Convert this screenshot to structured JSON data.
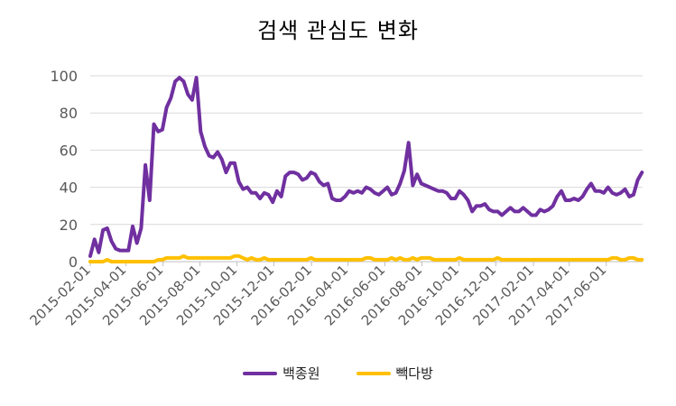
{
  "chart_data": {
    "type": "line",
    "title": "검색 관심도 변화",
    "xlabel": "",
    "ylabel": "",
    "ylim": [
      0,
      100
    ],
    "yticks": [
      0,
      20,
      40,
      60,
      80,
      100
    ],
    "xlim": [
      "2015-02-01",
      "2017-07-31"
    ],
    "xticks": [
      "2015-02-01",
      "2015-04-01",
      "2015-06-01",
      "2015-08-01",
      "2015-10-01",
      "2015-12-01",
      "2016-02-01",
      "2016-04-01",
      "2016-06-01",
      "2016-08-01",
      "2016-10-01",
      "2016-12-01",
      "2017-02-01",
      "2017-04-01",
      "2017-06-01"
    ],
    "grid": "horizontal",
    "legend_position": "bottom",
    "colors": {
      "series_1": "#7030a0",
      "series_2": "#ffc000"
    },
    "series": [
      {
        "name": "백종원",
        "x": [
          "2015-02-01",
          "2015-02-08",
          "2015-02-15",
          "2015-02-22",
          "2015-03-01",
          "2015-03-08",
          "2015-03-15",
          "2015-03-22",
          "2015-03-29",
          "2015-04-05",
          "2015-04-12",
          "2015-04-19",
          "2015-04-26",
          "2015-05-03",
          "2015-05-10",
          "2015-05-17",
          "2015-05-24",
          "2015-05-31",
          "2015-06-07",
          "2015-06-14",
          "2015-06-21",
          "2015-06-28",
          "2015-07-05",
          "2015-07-12",
          "2015-07-19",
          "2015-07-26",
          "2015-08-02",
          "2015-08-09",
          "2015-08-16",
          "2015-08-23",
          "2015-08-30",
          "2015-09-06",
          "2015-09-13",
          "2015-09-20",
          "2015-09-27",
          "2015-10-04",
          "2015-10-11",
          "2015-10-18",
          "2015-10-25",
          "2015-11-01",
          "2015-11-08",
          "2015-11-15",
          "2015-11-22",
          "2015-11-29",
          "2015-12-06",
          "2015-12-13",
          "2015-12-20",
          "2015-12-27",
          "2016-01-03",
          "2016-01-10",
          "2016-01-17",
          "2016-01-24",
          "2016-01-31",
          "2016-02-07",
          "2016-02-14",
          "2016-02-21",
          "2016-02-28",
          "2016-03-06",
          "2016-03-13",
          "2016-03-20",
          "2016-03-27",
          "2016-04-03",
          "2016-04-10",
          "2016-04-17",
          "2016-04-24",
          "2016-05-01",
          "2016-05-08",
          "2016-05-15",
          "2016-05-22",
          "2016-05-29",
          "2016-06-05",
          "2016-06-12",
          "2016-06-19",
          "2016-06-26",
          "2016-07-03",
          "2016-07-10",
          "2016-07-17",
          "2016-07-24",
          "2016-07-31",
          "2016-08-07",
          "2016-08-14",
          "2016-08-21",
          "2016-08-28",
          "2016-09-04",
          "2016-09-11",
          "2016-09-18",
          "2016-09-25",
          "2016-10-02",
          "2016-10-09",
          "2016-10-16",
          "2016-10-23",
          "2016-10-30",
          "2016-11-06",
          "2016-11-13",
          "2016-11-20",
          "2016-11-27",
          "2016-12-04",
          "2016-12-11",
          "2016-12-18",
          "2016-12-25",
          "2017-01-01",
          "2017-01-08",
          "2017-01-15",
          "2017-01-22",
          "2017-01-29",
          "2017-02-05",
          "2017-02-12",
          "2017-02-19",
          "2017-02-26",
          "2017-03-05",
          "2017-03-12",
          "2017-03-19",
          "2017-03-26",
          "2017-04-02",
          "2017-04-09",
          "2017-04-16",
          "2017-04-23",
          "2017-04-30",
          "2017-05-07",
          "2017-05-14",
          "2017-05-21",
          "2017-05-28",
          "2017-06-04",
          "2017-06-11",
          "2017-06-18",
          "2017-06-25",
          "2017-07-02",
          "2017-07-09",
          "2017-07-16",
          "2017-07-23",
          "2017-07-30"
        ],
        "values": [
          3,
          12,
          5,
          17,
          18,
          11,
          7,
          6,
          6,
          6,
          19,
          10,
          18,
          52,
          33,
          74,
          70,
          71,
          83,
          88,
          97,
          99,
          97,
          90,
          87,
          99,
          70,
          62,
          57,
          56,
          59,
          55,
          48,
          53,
          53,
          43,
          39,
          40,
          37,
          37,
          34,
          37,
          36,
          32,
          38,
          35,
          46,
          48,
          48,
          47,
          44,
          45,
          48,
          47,
          43,
          41,
          42,
          34,
          33,
          33,
          35,
          38,
          37,
          38,
          37,
          40,
          39,
          37,
          36,
          38,
          40,
          36,
          37,
          42,
          49,
          64,
          41,
          47,
          42,
          41,
          40,
          39,
          38,
          38,
          37,
          34,
          34,
          38,
          36,
          33,
          27,
          30,
          30,
          31,
          28,
          27,
          27,
          25,
          27,
          29,
          27,
          27,
          29,
          27,
          25,
          25,
          28,
          27,
          28,
          30,
          35,
          38,
          33,
          33,
          34,
          33,
          35,
          39,
          42,
          38,
          38,
          37,
          40,
          37,
          36,
          37,
          39,
          35,
          36,
          44,
          48
        ]
      },
      {
        "name": "빽다방",
        "x": [
          "2015-02-01",
          "2015-02-08",
          "2015-02-15",
          "2015-02-22",
          "2015-03-01",
          "2015-03-08",
          "2015-03-15",
          "2015-03-22",
          "2015-03-29",
          "2015-04-05",
          "2015-04-12",
          "2015-04-19",
          "2015-04-26",
          "2015-05-03",
          "2015-05-10",
          "2015-05-17",
          "2015-05-24",
          "2015-05-31",
          "2015-06-07",
          "2015-06-14",
          "2015-06-21",
          "2015-06-28",
          "2015-07-05",
          "2015-07-12",
          "2015-07-19",
          "2015-07-26",
          "2015-08-02",
          "2015-08-09",
          "2015-08-16",
          "2015-08-23",
          "2015-08-30",
          "2015-09-06",
          "2015-09-13",
          "2015-09-20",
          "2015-09-27",
          "2015-10-04",
          "2015-10-11",
          "2015-10-18",
          "2015-10-25",
          "2015-11-01",
          "2015-11-08",
          "2015-11-15",
          "2015-11-22",
          "2015-11-29",
          "2015-12-06",
          "2015-12-13",
          "2015-12-20",
          "2015-12-27",
          "2016-01-03",
          "2016-01-10",
          "2016-01-17",
          "2016-01-24",
          "2016-01-31",
          "2016-02-07",
          "2016-02-14",
          "2016-02-21",
          "2016-02-28",
          "2016-03-06",
          "2016-03-13",
          "2016-03-20",
          "2016-03-27",
          "2016-04-03",
          "2016-04-10",
          "2016-04-17",
          "2016-04-24",
          "2016-05-01",
          "2016-05-08",
          "2016-05-15",
          "2016-05-22",
          "2016-05-29",
          "2016-06-05",
          "2016-06-12",
          "2016-06-19",
          "2016-06-26",
          "2016-07-03",
          "2016-07-10",
          "2016-07-17",
          "2016-07-24",
          "2016-07-31",
          "2016-08-07",
          "2016-08-14",
          "2016-08-21",
          "2016-08-28",
          "2016-09-04",
          "2016-09-11",
          "2016-09-18",
          "2016-09-25",
          "2016-10-02",
          "2016-10-09",
          "2016-10-16",
          "2016-10-23",
          "2016-10-30",
          "2016-11-06",
          "2016-11-13",
          "2016-11-20",
          "2016-11-27",
          "2016-12-04",
          "2016-12-11",
          "2016-12-18",
          "2016-12-25",
          "2017-01-01",
          "2017-01-08",
          "2017-01-15",
          "2017-01-22",
          "2017-01-29",
          "2017-02-05",
          "2017-02-12",
          "2017-02-19",
          "2017-02-26",
          "2017-03-05",
          "2017-03-12",
          "2017-03-19",
          "2017-03-26",
          "2017-04-02",
          "2017-04-09",
          "2017-04-16",
          "2017-04-23",
          "2017-04-30",
          "2017-05-07",
          "2017-05-14",
          "2017-05-21",
          "2017-05-28",
          "2017-06-04",
          "2017-06-11",
          "2017-06-18",
          "2017-06-25",
          "2017-07-02",
          "2017-07-09",
          "2017-07-16",
          "2017-07-23",
          "2017-07-30"
        ],
        "values": [
          0,
          0,
          0,
          0,
          1,
          0,
          0,
          0,
          0,
          0,
          0,
          0,
          0,
          0,
          0,
          0,
          1,
          1,
          2,
          2,
          2,
          2,
          3,
          2,
          2,
          2,
          2,
          2,
          2,
          2,
          2,
          2,
          2,
          2,
          3,
          3,
          2,
          1,
          2,
          1,
          1,
          2,
          1,
          1,
          1,
          1,
          1,
          1,
          1,
          1,
          1,
          1,
          2,
          1,
          1,
          1,
          1,
          1,
          1,
          1,
          1,
          1,
          1,
          1,
          1,
          2,
          2,
          1,
          1,
          1,
          1,
          2,
          1,
          2,
          1,
          1,
          2,
          1,
          2,
          2,
          2,
          1,
          1,
          1,
          1,
          1,
          1,
          2,
          1,
          1,
          1,
          1,
          1,
          1,
          1,
          1,
          2,
          1,
          1,
          1,
          1,
          1,
          1,
          1,
          1,
          1,
          1,
          1,
          1,
          1,
          1,
          1,
          1,
          1,
          1,
          1,
          1,
          1,
          1,
          1,
          1,
          1,
          1,
          2,
          2,
          1,
          1,
          2,
          2,
          1,
          1
        ]
      }
    ]
  }
}
